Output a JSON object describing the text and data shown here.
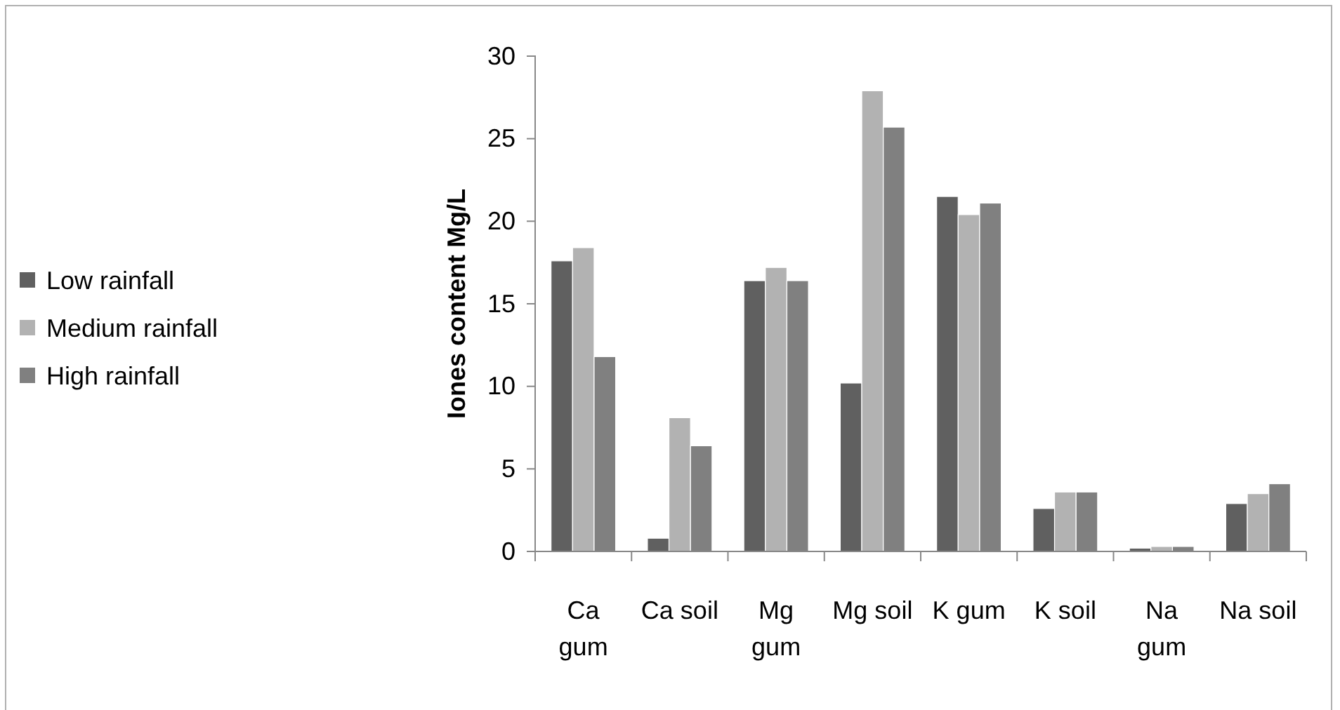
{
  "chart_data": {
    "type": "bar",
    "ylabel": "Iones content Mg/L",
    "categories": [
      "Ca gum",
      "Ca soil",
      "Mg gum",
      "Mg soil",
      "K gum",
      "K soil",
      "Na gum",
      "Na soil"
    ],
    "series": [
      {
        "name": "Low rainfall",
        "color": "#606060",
        "values": [
          17.6,
          0.8,
          16.4,
          10.2,
          21.5,
          2.6,
          0.2,
          2.9
        ]
      },
      {
        "name": "Medium rainfall",
        "color": "#b2b2b2",
        "values": [
          18.4,
          8.1,
          17.2,
          27.9,
          20.4,
          3.6,
          0.3,
          3.5
        ]
      },
      {
        "name": "High rainfall",
        "color": "#808080",
        "values": [
          11.8,
          6.4,
          16.4,
          25.7,
          21.1,
          3.6,
          0.3,
          4.1
        ]
      }
    ],
    "ylim": [
      0,
      30
    ],
    "yticks": [
      0,
      5,
      10,
      15,
      20,
      25,
      30
    ],
    "grid": false,
    "legend": "left"
  }
}
